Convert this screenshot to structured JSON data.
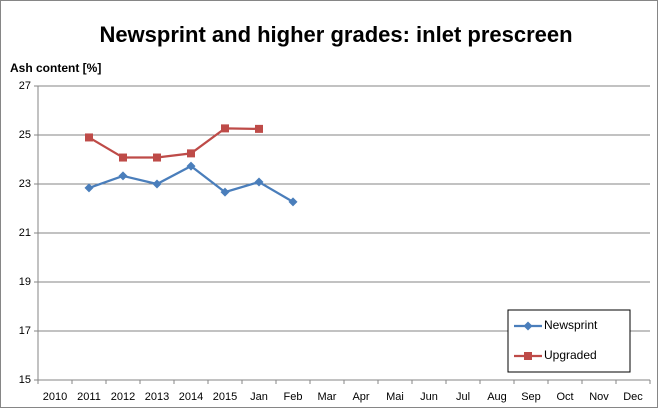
{
  "chart_data": {
    "type": "line",
    "title": "Newsprint and higher grades: inlet prescreen",
    "y_label": "Ash content [%]",
    "categories": [
      "2010",
      "2011",
      "2012",
      "2013",
      "2014",
      "2015",
      "Jan",
      "Feb",
      "Mar",
      "Apr",
      "Mai",
      "Jun",
      "Jul",
      "Aug",
      "Sep",
      "Oct",
      "Nov",
      "Dec"
    ],
    "series": [
      {
        "name": "Newsprint",
        "color": "#4a7ebb",
        "marker": "diamond",
        "values": [
          null,
          22.84,
          23.33,
          23.0,
          23.73,
          22.67,
          23.08,
          22.27,
          null,
          null,
          null,
          null,
          null,
          null,
          null,
          null,
          null,
          null
        ]
      },
      {
        "name": "Upgraded",
        "color": "#be4b48",
        "marker": "square",
        "values": [
          null,
          24.9,
          24.08,
          24.08,
          24.25,
          25.27,
          25.25,
          null,
          null,
          null,
          null,
          null,
          null,
          null,
          null,
          null,
          null,
          null
        ]
      }
    ],
    "ylim": [
      15,
      27
    ],
    "yticks": [
      15,
      17,
      19,
      21,
      23,
      25,
      27
    ],
    "grid": true,
    "legend": "bottom-right"
  }
}
